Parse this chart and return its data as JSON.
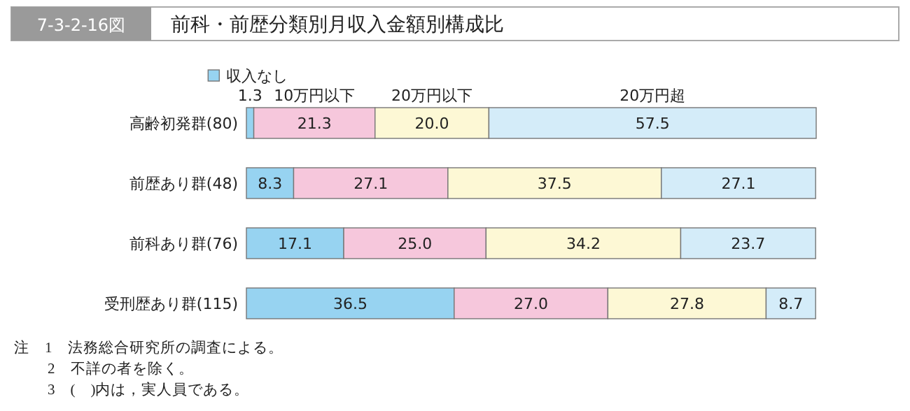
{
  "chart_data": {
    "type": "bar",
    "orientation": "horizontal",
    "stacked": true,
    "title": "前科・前歴分類別月収入金額別構成比",
    "subtitle": "7-3-2-16図",
    "categories": [
      "高齢初発群(80)",
      "前歴あり群(48)",
      "前科あり群(76)",
      "受刑歴あり群(115)"
    ],
    "series": [
      {
        "name": "収入なし",
        "color": "#97d3f1",
        "values": [
          1.3,
          8.3,
          17.1,
          36.5
        ],
        "value_labels": [
          "1.3",
          "8.3",
          "17.1",
          "36.5"
        ]
      },
      {
        "name": "10万円以下",
        "color": "#f6c7dc",
        "values": [
          21.3,
          27.1,
          25.0,
          27.0
        ],
        "value_labels": [
          "21.3",
          "27.1",
          "25.0",
          "27.0"
        ]
      },
      {
        "name": "20万円以下",
        "color": "#fdf8d5",
        "values": [
          20.0,
          37.5,
          34.2,
          27.8
        ],
        "value_labels": [
          "20.0",
          "37.5",
          "34.2",
          "27.8"
        ]
      },
      {
        "name": "20万円超",
        "color": "#d4ecf9",
        "values": [
          57.5,
          27.1,
          23.7,
          8.7
        ],
        "value_labels": [
          "57.5",
          "27.1",
          "23.7",
          "8.7"
        ]
      }
    ],
    "annotations": [
      "注　1　法務総合研究所の調査による。",
      "2　不詳の者を除く。",
      "3　(　)内は，実人員である。"
    ]
  }
}
